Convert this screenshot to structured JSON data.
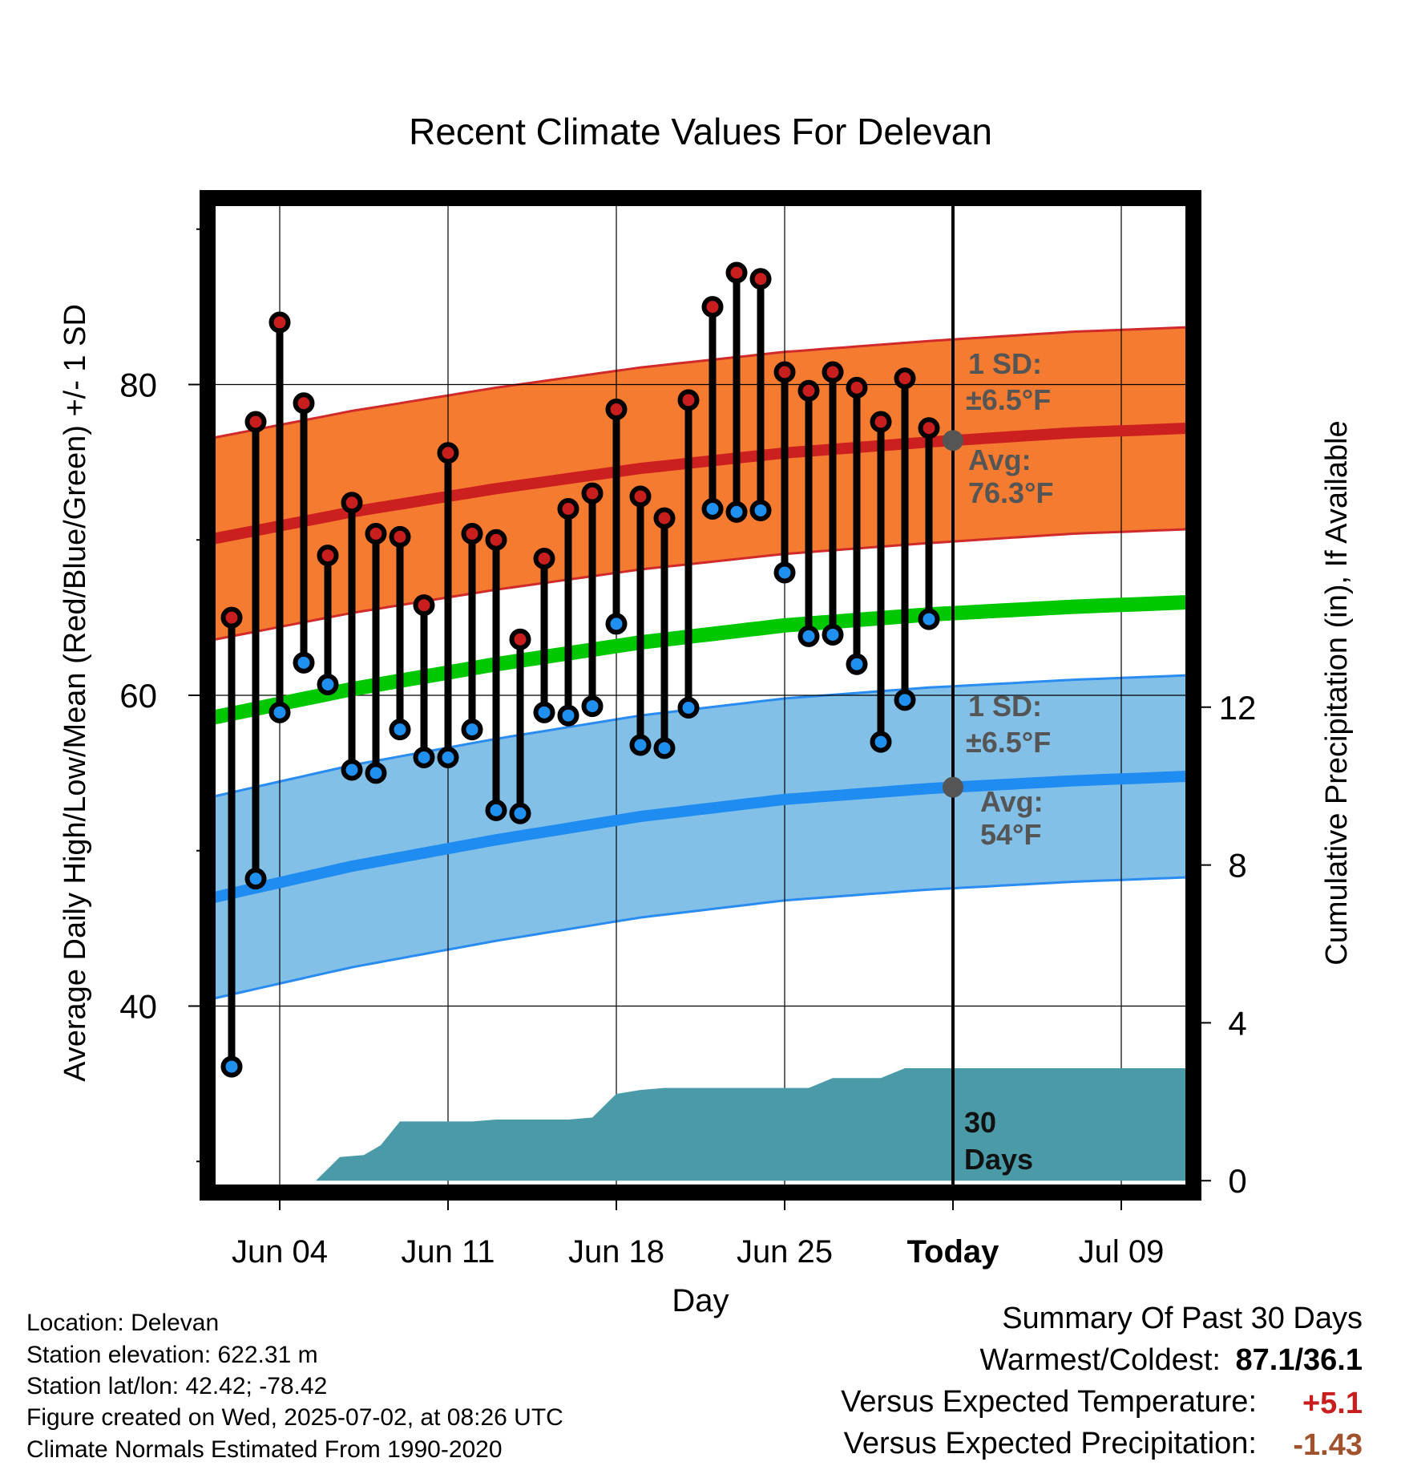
{
  "chart_data": {
    "type": "line",
    "title": "Recent Climate Values For Delevan",
    "xlabel": "Day",
    "ylabel": "Average Daily High/Low/Mean (Red/Blue/Green) +/- 1 SD",
    "ylabel_right": "Cumulative Precipitation (in), If Available",
    "x_ticks": [
      "Jun 04",
      "Jun 11",
      "Jun 18",
      "Jun 25",
      "Today",
      "Jul 09"
    ],
    "y_ticks": [
      "40",
      "60",
      "80"
    ],
    "y_right_ticks": [
      "0",
      "4",
      "8",
      "12"
    ],
    "y_range": [
      28,
      92
    ],
    "y_right_range": [
      -0.3,
      24.9
    ],
    "grid": true,
    "x_start_label": "Jun 01",
    "today_index": 31,
    "days": [
      "Jun 02",
      "Jun 03",
      "Jun 04",
      "Jun 05",
      "Jun 06",
      "Jun 07",
      "Jun 08",
      "Jun 09",
      "Jun 10",
      "Jun 11",
      "Jun 12",
      "Jun 13",
      "Jun 14",
      "Jun 15",
      "Jun 16",
      "Jun 17",
      "Jun 18",
      "Jun 19",
      "Jun 20",
      "Jun 21",
      "Jun 22",
      "Jun 23",
      "Jun 24",
      "Jun 25",
      "Jun 26",
      "Jun 27",
      "Jun 28",
      "Jun 29",
      "Jun 30",
      "Jul 01"
    ],
    "series": [
      {
        "name": "High",
        "color": "#c81e1e",
        "values": [
          65.0,
          77.6,
          84.0,
          78.8,
          69.0,
          72.4,
          70.4,
          70.2,
          65.8,
          75.6,
          70.4,
          70.0,
          63.6,
          68.8,
          72.0,
          73.0,
          78.4,
          72.8,
          71.4,
          79.0,
          85.0,
          87.2,
          86.8,
          80.8,
          79.6,
          80.8,
          79.8,
          77.6,
          80.4,
          77.2
        ]
      },
      {
        "name": "Low",
        "color": "#2090f0",
        "values": [
          36.1,
          48.2,
          58.9,
          62.1,
          60.7,
          55.2,
          55.0,
          57.8,
          56.0,
          56.0,
          57.8,
          52.6,
          52.4,
          58.9,
          58.7,
          59.3,
          64.6,
          56.8,
          56.6,
          59.2,
          72.0,
          71.8,
          71.9,
          67.9,
          63.8,
          63.9,
          62.0,
          57.0,
          59.7,
          64.9
        ]
      }
    ],
    "normals": {
      "days": [
        0,
        6,
        12,
        18,
        24,
        30,
        36,
        41
      ],
      "high_avg": [
        70.0,
        71.8,
        73.3,
        74.6,
        75.6,
        76.3,
        76.9,
        77.2
      ],
      "low_avg": [
        46.9,
        49.0,
        50.7,
        52.2,
        53.3,
        54.0,
        54.5,
        54.8
      ],
      "mean_avg": [
        58.5,
        60.4,
        62.0,
        63.4,
        64.5,
        65.2,
        65.7,
        66.0
      ],
      "sd": 6.5,
      "high_color": "#f47b30",
      "low_color": "#82c0e8",
      "mean_color": "#00c800"
    },
    "precip": {
      "days": [
        4.5,
        5.5,
        6.5,
        7.2,
        8.0,
        9.0,
        10.0,
        11.0,
        12.0,
        13.0,
        14.0,
        15.0,
        16.0,
        17.0,
        18.0,
        19.0,
        20.0,
        21.0,
        22.0,
        23.0,
        24.0,
        25.0,
        26.0,
        27.0,
        28.0,
        29.0,
        30.0,
        31.0,
        41.0
      ],
      "values": [
        0.0,
        0.6,
        0.65,
        0.9,
        1.5,
        1.5,
        1.5,
        1.5,
        1.55,
        1.55,
        1.55,
        1.55,
        1.6,
        2.2,
        2.3,
        2.35,
        2.35,
        2.35,
        2.35,
        2.35,
        2.35,
        2.35,
        2.6,
        2.6,
        2.6,
        2.85,
        2.85,
        2.85,
        2.85
      ],
      "color": "#4a9aa8"
    },
    "annotations": {
      "high_sd": [
        "1 SD:",
        "±6.5°F"
      ],
      "high_avg": [
        "Avg:",
        "76.3°F"
      ],
      "low_sd": [
        "1 SD:",
        "±6.5°F"
      ],
      "low_avg": [
        "Avg:",
        "54°F"
      ],
      "precip_period": [
        "30",
        "Days"
      ]
    }
  },
  "metadata": {
    "location": "Location: Delevan",
    "elevation": "Station elevation: 622.31 m",
    "latlon": "Station lat/lon: 42.42; -78.42",
    "created": "Figure created on Wed, 2025-07-02, at 08:26 UTC",
    "normals": "Climate Normals Estimated From 1990-2020"
  },
  "summary": {
    "title": "Summary Of Past 30 Days",
    "warm_cold_label": "Warmest/Coldest:",
    "warm_cold_value": "87.1/36.1",
    "temp_label": "Versus Expected Temperature:",
    "temp_value": "+5.1",
    "temp_color": "#c81e1e",
    "precip_label": "Versus Expected Precipitation:",
    "precip_value": "-1.43",
    "precip_color": "#a0522d"
  }
}
